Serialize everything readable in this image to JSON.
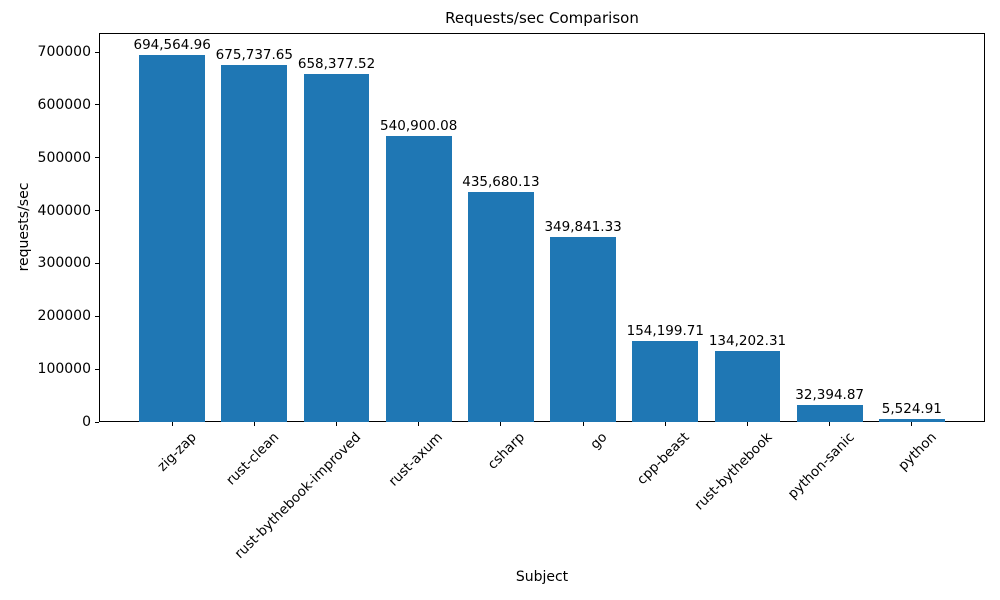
{
  "chart_data": {
    "type": "bar",
    "title": "Requests/sec Comparison",
    "xlabel": "Subject",
    "ylabel": "requests/sec",
    "categories": [
      "zig-zap",
      "rust-clean",
      "rust-bythebook-improved",
      "rust-axum",
      "csharp",
      "go",
      "cpp-beast",
      "rust-bythebook",
      "python-sanic",
      "python"
    ],
    "values": [
      694564.96,
      675737.65,
      658377.52,
      540900.08,
      435680.13,
      349841.33,
      154199.71,
      134202.31,
      32394.87,
      5524.91
    ],
    "value_labels": [
      "694,564.96",
      "675,737.65",
      "658,377.52",
      "540,900.08",
      "435,680.13",
      "349,841.33",
      "154,199.71",
      "134,202.31",
      "32,394.87",
      "5,524.91"
    ],
    "bar_color": "#1f77b4",
    "text_color": "#000000",
    "ylim": [
      0,
      736000
    ],
    "yticks": [
      0,
      100000,
      200000,
      300000,
      400000,
      500000,
      600000,
      700000
    ],
    "ytick_labels": [
      "0",
      "100000",
      "200000",
      "300000",
      "400000",
      "500000",
      "600000",
      "700000"
    ],
    "xtick_rotation_deg": 45,
    "grid": false,
    "legend": null
  }
}
